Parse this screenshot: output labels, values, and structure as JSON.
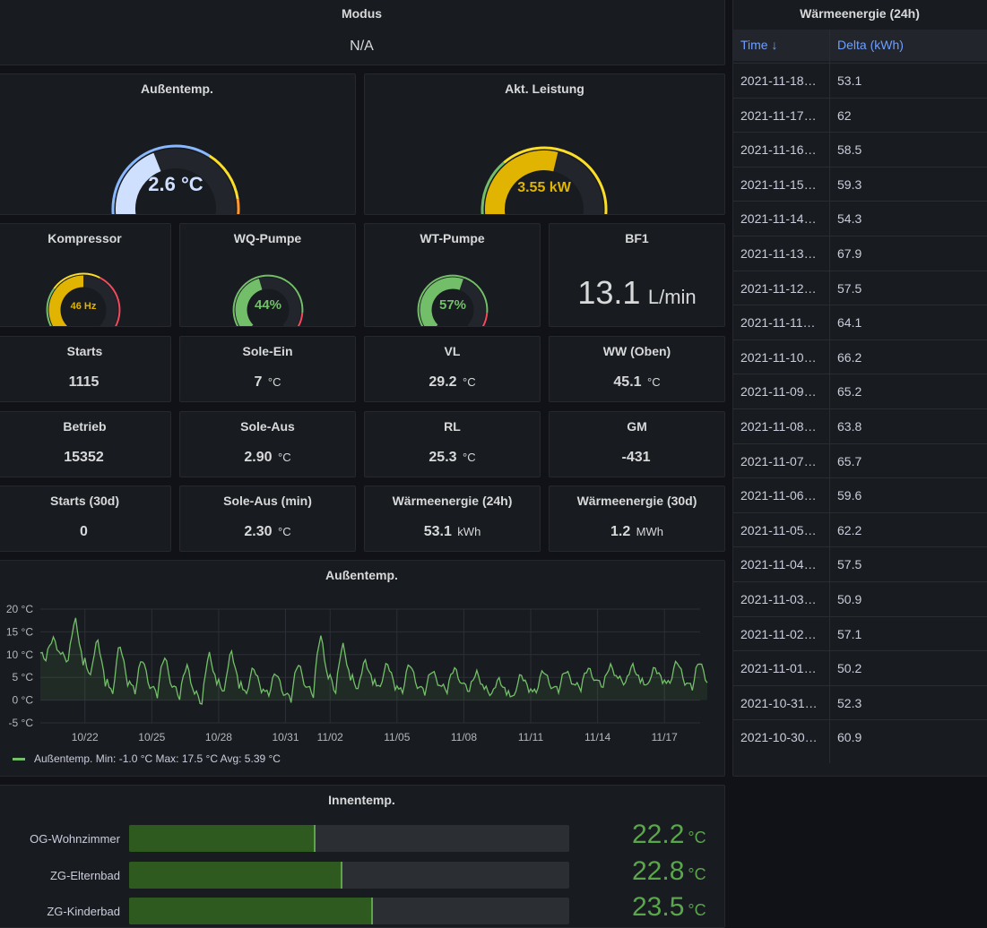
{
  "colors": {
    "green": "#73bf69",
    "yellow": "#fade2a",
    "red": "#f2495c",
    "blue": "#8ab8ff",
    "text": "#d8d9da"
  },
  "modus": {
    "title": "Modus",
    "value": "N/A"
  },
  "aussentemp_gauge": {
    "title": "Außentemp.",
    "value": "2.6 °C",
    "level": 0.42
  },
  "leistung_gauge": {
    "title": "Akt. Leistung",
    "value": "3.55 kW",
    "level": 0.55
  },
  "kompressor": {
    "title": "Kompressor",
    "value": "46 Hz",
    "level": 0.5
  },
  "wq_pumpe": {
    "title": "WQ-Pumpe",
    "value": "44%",
    "level": 0.44
  },
  "wt_pumpe": {
    "title": "WT-Pumpe",
    "value": "57%",
    "level": 0.57
  },
  "bf1": {
    "title": "BF1",
    "value": "13.1",
    "unit": "L/min"
  },
  "stats": {
    "starts": {
      "title": "Starts",
      "value": "1115",
      "unit": ""
    },
    "sole_ein": {
      "title": "Sole-Ein",
      "value": "7",
      "unit": "°C"
    },
    "vl": {
      "title": "VL",
      "value": "29.2",
      "unit": "°C"
    },
    "ww_oben": {
      "title": "WW (Oben)",
      "value": "45.1",
      "unit": "°C"
    },
    "betrieb": {
      "title": "Betrieb",
      "value": "15352",
      "unit": ""
    },
    "sole_aus": {
      "title": "Sole-Aus",
      "value": "2.90",
      "unit": "°C"
    },
    "rl": {
      "title": "RL",
      "value": "25.3",
      "unit": "°C"
    },
    "gm": {
      "title": "GM",
      "value": "-431",
      "unit": ""
    },
    "starts_30d": {
      "title": "Starts (30d)",
      "value": "0",
      "unit": ""
    },
    "sole_aus_min": {
      "title": "Sole-Aus (min)",
      "value": "2.30",
      "unit": "°C"
    },
    "waerme_24h": {
      "title": "Wärmeenergie (24h)",
      "value": "53.1",
      "unit": "kWh"
    },
    "waerme_30d": {
      "title": "Wärmeenergie (30d)",
      "value": "1.2",
      "unit": "MWh"
    }
  },
  "table": {
    "title": "Wärmeenergie (24h)",
    "col_time": "Time ↓",
    "col_delta": "Delta (kWh)",
    "rows": [
      {
        "time": "2021-11-18…",
        "delta": "53.1"
      },
      {
        "time": "2021-11-17…",
        "delta": "62"
      },
      {
        "time": "2021-11-16…",
        "delta": "58.5"
      },
      {
        "time": "2021-11-15…",
        "delta": "59.3"
      },
      {
        "time": "2021-11-14…",
        "delta": "54.3"
      },
      {
        "time": "2021-11-13…",
        "delta": "67.9"
      },
      {
        "time": "2021-11-12…",
        "delta": "57.5"
      },
      {
        "time": "2021-11-11…",
        "delta": "64.1"
      },
      {
        "time": "2021-11-10…",
        "delta": "66.2"
      },
      {
        "time": "2021-11-09…",
        "delta": "65.2"
      },
      {
        "time": "2021-11-08…",
        "delta": "63.8"
      },
      {
        "time": "2021-11-07…",
        "delta": "65.7"
      },
      {
        "time": "2021-11-06…",
        "delta": "59.6"
      },
      {
        "time": "2021-11-05…",
        "delta": "62.2"
      },
      {
        "time": "2021-11-04…",
        "delta": "57.5"
      },
      {
        "time": "2021-11-03…",
        "delta": "50.9"
      },
      {
        "time": "2021-11-02…",
        "delta": "57.1"
      },
      {
        "time": "2021-11-01…",
        "delta": "50.2"
      },
      {
        "time": "2021-10-31…",
        "delta": "52.3"
      },
      {
        "time": "2021-10-30…",
        "delta": "60.9"
      }
    ]
  },
  "chart_panel": {
    "title": "Außentemp.",
    "legend": "Außentemp.  Min: -1.0 °C  Max: 17.5 °C  Avg: 5.39 °C"
  },
  "chart_data": {
    "type": "line",
    "title": "Außentemp.",
    "ylim": [
      -5,
      20
    ],
    "y_ticks": [
      "20 °C",
      "15 °C",
      "10 °C",
      "5 °C",
      "0 °C",
      "-5 °C"
    ],
    "x_ticks": [
      "10/22",
      "10/25",
      "10/28",
      "10/31",
      "11/02",
      "11/05",
      "11/08",
      "11/11",
      "11/14",
      "11/17"
    ],
    "x_days": [
      "2021-10-20",
      "2021-10-21",
      "2021-10-22",
      "2021-10-23",
      "2021-10-24",
      "2021-10-25",
      "2021-10-26",
      "2021-10-27",
      "2021-10-28",
      "2021-10-29",
      "2021-10-30",
      "2021-10-31",
      "2021-11-01",
      "2021-11-02",
      "2021-11-03",
      "2021-11-04",
      "2021-11-05",
      "2021-11-06",
      "2021-11-07",
      "2021-11-08",
      "2021-11-09",
      "2021-11-10",
      "2021-11-11",
      "2021-11-12",
      "2021-11-13",
      "2021-11-14",
      "2021-11-15",
      "2021-11-16",
      "2021-11-17",
      "2021-11-18"
    ],
    "grid": true,
    "series": [
      {
        "name": "Außentemp.",
        "max": [
          13.5,
          17.5,
          13.0,
          12.0,
          9.0,
          9.5,
          7.5,
          10.0,
          10.5,
          7.0,
          6.0,
          8.0,
          14.0,
          12.0,
          8.5,
          8.0,
          8.0,
          6.5,
          7.0,
          6.0,
          4.5,
          5.5,
          6.5,
          6.5,
          7.0,
          7.5,
          7.5,
          7.0,
          8.5,
          8.5
        ],
        "min": [
          9.0,
          8.5,
          5.0,
          1.0,
          1.5,
          1.0,
          0.5,
          -1.0,
          1.5,
          1.0,
          1.0,
          0.0,
          1.0,
          1.5,
          2.0,
          2.5,
          1.5,
          1.5,
          2.0,
          2.0,
          1.0,
          0.5,
          1.5,
          2.0,
          2.5,
          3.0,
          3.5,
          3.0,
          3.5,
          2.5
        ]
      }
    ],
    "legend_stats": {
      "min": "-1.0 °C",
      "max": "17.5 °C",
      "avg": "5.39 °C"
    },
    "legend_position": "bottom-left"
  },
  "bargauge": {
    "title": "Innentemp.",
    "unit": "°C",
    "items": [
      {
        "label": "OG-Wohnzimmer",
        "value": "22.2",
        "level": 0.42
      },
      {
        "label": "ZG-Elternbad",
        "value": "22.8",
        "level": 0.48
      },
      {
        "label": "ZG-Kinderbad",
        "value": "23.5",
        "level": 0.55
      }
    ]
  }
}
